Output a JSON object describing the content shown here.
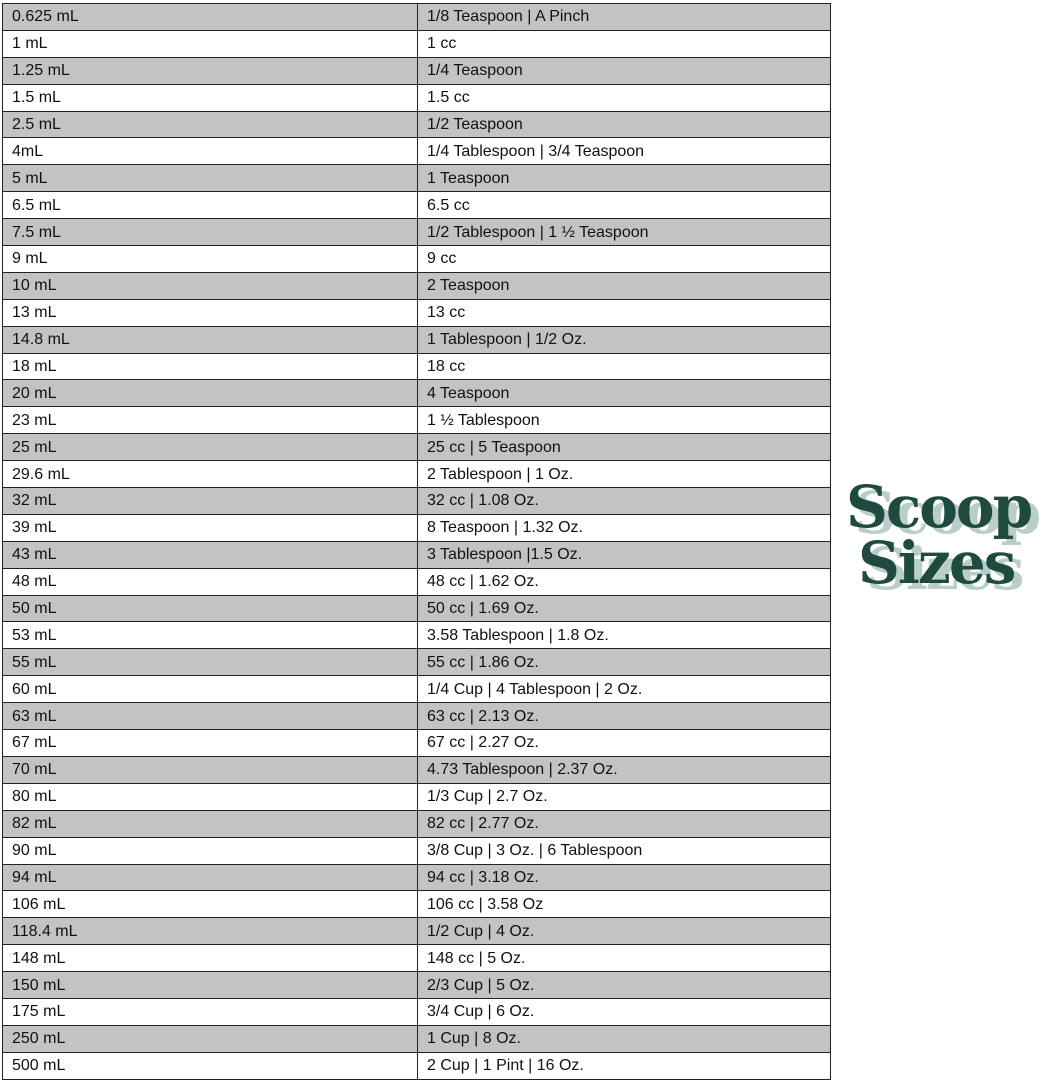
{
  "rows": [
    [
      "0.625 mL",
      "1/8 Teaspoon | A Pinch"
    ],
    [
      "1 mL",
      "1 cc"
    ],
    [
      "1.25 mL",
      "1/4 Teaspoon"
    ],
    [
      "1.5 mL",
      "1.5 cc"
    ],
    [
      "2.5 mL",
      "1/2 Teaspoon"
    ],
    [
      "4mL",
      "1/4 Tablespoon | 3/4 Teaspoon"
    ],
    [
      "5 mL",
      "1 Teaspoon"
    ],
    [
      "6.5 mL",
      "6.5 cc"
    ],
    [
      "7.5 mL",
      "1/2 Tablespoon | 1 ½ Teaspoon"
    ],
    [
      "9 mL",
      "9 cc"
    ],
    [
      "10 mL",
      "2 Teaspoon"
    ],
    [
      "13 mL",
      "13 cc"
    ],
    [
      "14.8 mL",
      "1 Tablespoon | 1/2 Oz."
    ],
    [
      "18 mL",
      "18 cc"
    ],
    [
      "20 mL",
      "4 Teaspoon"
    ],
    [
      "23 mL",
      "1 ½ Tablespoon"
    ],
    [
      "25 mL",
      "25 cc | 5 Teaspoon"
    ],
    [
      "29.6 mL",
      "2 Tablespoon | 1 Oz."
    ],
    [
      "32 mL",
      "32 cc | 1.08 Oz."
    ],
    [
      "39 mL",
      "8 Teaspoon | 1.32 Oz."
    ],
    [
      "43 mL",
      "3 Tablespoon |1.5 Oz."
    ],
    [
      "48 mL",
      "48 cc | 1.62 Oz."
    ],
    [
      "50 mL",
      "50 cc | 1.69 Oz."
    ],
    [
      "53 mL",
      "3.58 Tablespoon | 1.8 Oz."
    ],
    [
      "55 mL",
      "55 cc | 1.86 Oz."
    ],
    [
      "60 mL",
      "1/4 Cup | 4 Tablespoon | 2 Oz."
    ],
    [
      "63 mL",
      "63 cc | 2.13 Oz."
    ],
    [
      "67 mL",
      "67 cc | 2.27 Oz."
    ],
    [
      "70 mL",
      "4.73 Tablespoon | 2.37 Oz."
    ],
    [
      "80 mL",
      "1/3 Cup | 2.7 Oz."
    ],
    [
      "82 mL",
      "82 cc | 2.77 Oz."
    ],
    [
      "90 mL",
      "3/8 Cup | 3 Oz. | 6 Tablespoon"
    ],
    [
      "94 mL",
      "94 cc | 3.18 Oz."
    ],
    [
      "106 mL",
      "106 cc | 3.58 Oz"
    ],
    [
      "118.4 mL",
      "1/2 Cup | 4 Oz."
    ],
    [
      "148 mL",
      "148 cc | 5 Oz."
    ],
    [
      "150 mL",
      "2/3 Cup | 5 Oz."
    ],
    [
      "175 mL",
      "3/4 Cup | 6 Oz."
    ],
    [
      "250 mL",
      "1 Cup | 8 Oz."
    ],
    [
      "500 mL",
      "2 Cup | 1 Pint | 16 Oz."
    ]
  ],
  "logo": {
    "line1": "Scoop",
    "line2": "Sizes"
  },
  "colors": {
    "row_stripe": "#c3c3c3",
    "logo": "#1e4a3f",
    "logo_shadow": "#b9cdc9"
  }
}
